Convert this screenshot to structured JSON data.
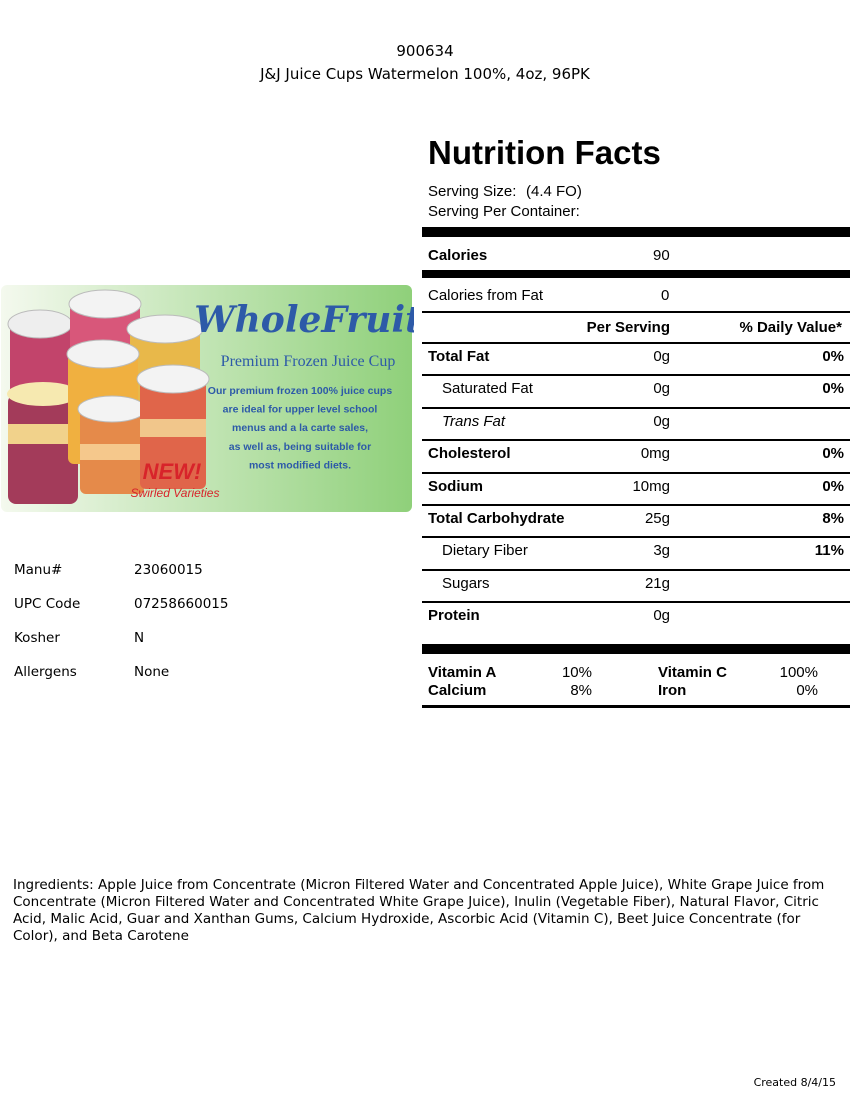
{
  "header": {
    "code": "900634",
    "name": "J&J Juice Cups Watermelon 100%, 4oz, 96PK"
  },
  "promo": {
    "brand": "WholeFruit",
    "tagline": "Premium Frozen Juice Cup",
    "description": [
      "Our premium frozen 100% juice cups",
      "are ideal for upper level school",
      "menus and a la carte sales,",
      "as well as, being suitable for",
      "most modified diets."
    ],
    "badge": "NEW!",
    "badge_sub": "Swirled Varieties"
  },
  "details": [
    [
      "Manu#",
      "23060015"
    ],
    [
      "UPC Code",
      "07258660015"
    ],
    [
      "Kosher",
      "N"
    ],
    [
      "Allergens",
      "None"
    ]
  ],
  "nutrition": {
    "title": "Nutrition Facts",
    "serving_size_label": "Serving Size:",
    "serving_size": "(4.4 FO)",
    "servings_label": "Serving Per Container:",
    "calories": [
      "Calories",
      "90"
    ],
    "calories_from_fat": [
      "Calories from Fat",
      "0"
    ],
    "column_headers": [
      "Per Serving",
      "% Daily Value*"
    ],
    "rows": [
      [
        "Total Fat",
        "0g",
        "0%"
      ],
      [
        "Saturated Fat",
        "0g",
        "0%"
      ],
      [
        "Trans Fat",
        "0g"
      ],
      [
        "Cholesterol",
        "0mg",
        "0%"
      ],
      [
        "Sodium",
        "10mg",
        "0%"
      ],
      [
        "Total Carbohydrate",
        "25g",
        "8%"
      ],
      [
        "Dietary Fiber",
        "3g",
        "11%"
      ],
      [
        "Sugars",
        "21g"
      ],
      [
        "Protein",
        "0g"
      ]
    ],
    "vitamins": [
      [
        "Vitamin A",
        "10%"
      ],
      [
        "Calcium",
        "8%"
      ],
      [
        "Vitamin C",
        "100%"
      ],
      [
        "Iron",
        "0%"
      ]
    ]
  },
  "ingredients": "Ingredients: Apple Juice from Concentrate (Micron Filtered Water and Concentrated Apple Juice), White Grape Juice from Concentrate (Micron Filtered Water and Concentrated White Grape Juice), Inulin (Vegetable Fiber), Natural Flavor, Citric Acid, Malic Acid, Guar and Xanthan Gums, Calcium Hydroxide, Ascorbic Acid (Vitamin C), Beet Juice Concentrate (for Color), and Beta Carotene",
  "footer": "Created 8/4/15"
}
